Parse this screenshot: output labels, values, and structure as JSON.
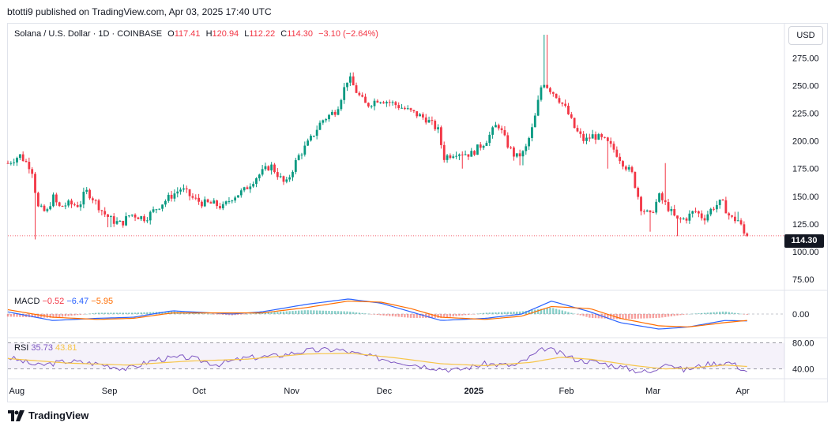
{
  "caption": "btotti9 published on TradingView.com, Apr 03, 2025 17:40 UTC",
  "legend": {
    "symbol": "Solana / U.S. Dollar · 1D · COINBASE",
    "o_label": "O",
    "o_value": "117.41",
    "h_label": "H",
    "h_value": "120.94",
    "l_label": "L",
    "l_value": "112.22",
    "c_label": "C",
    "c_value": "114.30",
    "change": "−3.10 (−2.64%)"
  },
  "macd_legend": {
    "label": "MACD",
    "v1": "−0.52",
    "v2": "−6.47",
    "v3": "−5.95"
  },
  "rsi_legend": {
    "label": "RSI",
    "v1": "35.73",
    "v2": "43.81"
  },
  "currency_button": "USD",
  "last_price": "114.30",
  "brand": "TradingView",
  "colors": {
    "up": "#089981",
    "down": "#f23645",
    "macd": "#2962ff",
    "signal": "#ff6d00",
    "rsi": "#7e57c2",
    "rsi_ma": "#f7c548"
  },
  "chart_data": [
    {
      "type": "candlestick",
      "title": "Solana / U.S. Dollar · 1D · COINBASE",
      "x_axis_labels": [
        "Aug",
        "Sep",
        "Oct",
        "Nov",
        "Dec",
        "2025",
        "Feb",
        "Mar",
        "Apr"
      ],
      "y_axis_ticks": [
        "275.00",
        "250.00",
        "225.00",
        "200.00",
        "175.00",
        "150.00",
        "125.00",
        "100.00",
        "75.00"
      ],
      "y_tick_values": [
        275,
        250,
        225,
        200,
        175,
        150,
        125,
        100,
        75
      ],
      "ylim": [
        65,
        306
      ],
      "x_months": [
        0.3,
        3.4,
        6.4,
        9.5,
        12.6,
        15.6,
        18.7,
        21.6,
        24.6
      ],
      "price_path": [
        [
          0,
          180
        ],
        [
          0.4,
          187
        ],
        [
          0.8,
          175
        ],
        [
          1.0,
          140
        ],
        [
          1.3,
          135
        ],
        [
          1.5,
          150
        ],
        [
          1.7,
          140
        ],
        [
          2.0,
          143
        ],
        [
          2.4,
          142
        ],
        [
          2.6,
          155
        ],
        [
          2.8,
          150
        ],
        [
          3.2,
          135
        ],
        [
          3.5,
          128
        ],
        [
          3.8,
          125
        ],
        [
          4.1,
          134
        ],
        [
          4.6,
          130
        ],
        [
          5.0,
          140
        ],
        [
          5.4,
          149
        ],
        [
          5.8,
          157
        ],
        [
          6.2,
          148
        ],
        [
          6.5,
          144
        ],
        [
          6.9,
          143
        ],
        [
          7.2,
          140
        ],
        [
          7.5,
          149
        ],
        [
          7.9,
          155
        ],
        [
          8.3,
          167
        ],
        [
          8.8,
          178
        ],
        [
          9.3,
          160
        ],
        [
          9.7,
          185
        ],
        [
          10.1,
          200
        ],
        [
          10.5,
          218
        ],
        [
          11.0,
          228
        ],
        [
          11.4,
          258
        ],
        [
          11.7,
          243
        ],
        [
          12.0,
          232
        ],
        [
          12.4,
          238
        ],
        [
          12.8,
          235
        ],
        [
          13.2,
          230
        ],
        [
          13.6,
          225
        ],
        [
          14.0,
          220
        ],
        [
          14.4,
          210
        ],
        [
          14.6,
          185
        ],
        [
          15.0,
          190
        ],
        [
          15.5,
          188
        ],
        [
          16.0,
          200
        ],
        [
          16.4,
          216
        ],
        [
          16.7,
          198
        ],
        [
          17.0,
          185
        ],
        [
          17.3,
          190
        ],
        [
          17.6,
          215
        ],
        [
          17.9,
          255
        ],
        [
          18.1,
          248
        ],
        [
          18.4,
          240
        ],
        [
          18.7,
          228
        ],
        [
          19.0,
          210
        ],
        [
          19.3,
          200
        ],
        [
          19.6,
          205
        ],
        [
          20.0,
          200
        ],
        [
          20.3,
          192
        ],
        [
          20.6,
          180
        ],
        [
          20.9,
          170
        ],
        [
          21.2,
          140
        ],
        [
          21.5,
          132
        ],
        [
          21.8,
          150
        ],
        [
          22.1,
          140
        ],
        [
          22.4,
          128
        ],
        [
          22.7,
          130
        ],
        [
          23.0,
          137
        ],
        [
          23.3,
          130
        ],
        [
          23.6,
          140
        ],
        [
          23.9,
          145
        ],
        [
          24.2,
          130
        ],
        [
          24.5,
          128
        ],
        [
          24.6,
          117
        ],
        [
          24.75,
          114.3
        ]
      ],
      "spikes": [
        [
          0.9,
          111
        ],
        [
          3.4,
          122
        ],
        [
          15.2,
          175
        ],
        [
          17.2,
          178
        ],
        [
          18.0,
          296
        ],
        [
          20.1,
          175
        ],
        [
          21.5,
          118
        ],
        [
          22.0,
          180
        ],
        [
          22.4,
          114
        ],
        [
          24.4,
          136
        ]
      ]
    },
    {
      "type": "line",
      "title": "MACD",
      "y_axis_ticks": [
        "0.00"
      ],
      "series": [
        {
          "name": "MACD",
          "points": [
            [
              0,
              2
            ],
            [
              1.5,
              -6
            ],
            [
              3,
              -4
            ],
            [
              4.2,
              -3
            ],
            [
              5.5,
              3
            ],
            [
              7.5,
              0
            ],
            [
              8.5,
              2
            ],
            [
              10,
              9
            ],
            [
              11.4,
              14
            ],
            [
              12.5,
              10
            ],
            [
              13.5,
              2
            ],
            [
              14.5,
              -6
            ],
            [
              16,
              -4
            ],
            [
              17.2,
              0
            ],
            [
              18.2,
              12
            ],
            [
              19.5,
              2
            ],
            [
              20.5,
              -8
            ],
            [
              21.8,
              -14
            ],
            [
              22.8,
              -12
            ],
            [
              24,
              -6
            ],
            [
              24.75,
              -6.47
            ]
          ]
        },
        {
          "name": "Signal",
          "points": [
            [
              0,
              4
            ],
            [
              1.5,
              -3
            ],
            [
              3,
              -5
            ],
            [
              4.2,
              -4
            ],
            [
              5.5,
              1
            ],
            [
              7.5,
              1
            ],
            [
              8.5,
              1
            ],
            [
              10,
              6
            ],
            [
              11.4,
              12
            ],
            [
              12.5,
              11
            ],
            [
              13.5,
              5
            ],
            [
              14.5,
              -3
            ],
            [
              16,
              -5
            ],
            [
              17.2,
              -2
            ],
            [
              18.2,
              7
            ],
            [
              19.5,
              5
            ],
            [
              20.5,
              -4
            ],
            [
              21.8,
              -11
            ],
            [
              22.8,
              -12
            ],
            [
              24,
              -8
            ],
            [
              24.75,
              -5.95
            ]
          ]
        }
      ],
      "ylim": [
        -22,
        22
      ]
    },
    {
      "type": "line",
      "title": "RSI",
      "y_axis_ticks": [
        "80.00",
        "40.00"
      ],
      "y_tick_values": [
        80,
        40
      ],
      "ylim": [
        25,
        88
      ],
      "series": [
        {
          "name": "RSI",
          "points": [
            [
              0,
              58
            ],
            [
              1,
              45
            ],
            [
              2,
              52
            ],
            [
              3,
              48
            ],
            [
              4,
              40
            ],
            [
              5,
              55
            ],
            [
              6,
              58
            ],
            [
              7,
              47
            ],
            [
              8,
              57
            ],
            [
              9,
              60
            ],
            [
              10,
              68
            ],
            [
              11,
              70
            ],
            [
              12,
              60
            ],
            [
              13,
              52
            ],
            [
              14,
              44
            ],
            [
              15,
              38
            ],
            [
              16,
              48
            ],
            [
              17,
              45
            ],
            [
              18,
              72
            ],
            [
              19,
              55
            ],
            [
              20,
              48
            ],
            [
              21,
              38
            ],
            [
              21.6,
              34
            ],
            [
              22,
              52
            ],
            [
              22.6,
              38
            ],
            [
              23.5,
              48
            ],
            [
              24.2,
              50
            ],
            [
              24.75,
              35.73
            ]
          ]
        },
        {
          "name": "RSI-based MA",
          "points": [
            [
              0,
              56
            ],
            [
              2,
              49
            ],
            [
              4,
              46
            ],
            [
              6,
              52
            ],
            [
              8,
              55
            ],
            [
              10,
              63
            ],
            [
              11.5,
              64
            ],
            [
              13,
              57
            ],
            [
              14.5,
              48
            ],
            [
              16,
              45
            ],
            [
              17.5,
              50
            ],
            [
              18.5,
              58
            ],
            [
              19.5,
              55
            ],
            [
              21,
              45
            ],
            [
              22,
              40
            ],
            [
              23,
              42
            ],
            [
              24,
              46
            ],
            [
              24.75,
              43.81
            ]
          ]
        }
      ]
    }
  ]
}
